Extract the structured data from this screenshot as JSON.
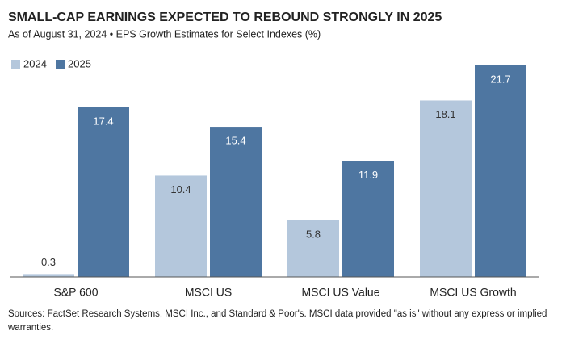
{
  "chart_data": {
    "type": "bar",
    "title": "SMALL-CAP EARNINGS EXPECTED TO REBOUND STRONGLY IN 2025",
    "subtitle": "As of August 31, 2024 • EPS Growth Estimates for Select Indexes (%)",
    "categories": [
      "S&P 600",
      "MSCI US",
      "MSCI US Value",
      "MSCI US Growth"
    ],
    "series": [
      {
        "name": "2024",
        "color": "#b4c7dc",
        "values": [
          0.3,
          10.4,
          5.8,
          18.1
        ]
      },
      {
        "name": "2025",
        "color": "#4e76a1",
        "values": [
          17.4,
          15.4,
          11.9,
          21.7
        ]
      }
    ],
    "legend": "top-left",
    "source": "Sources: FactSet Research Systems, MSCI Inc., and Standard & Poor's. MSCI data provided \"as is\" without any express or implied warranties."
  }
}
